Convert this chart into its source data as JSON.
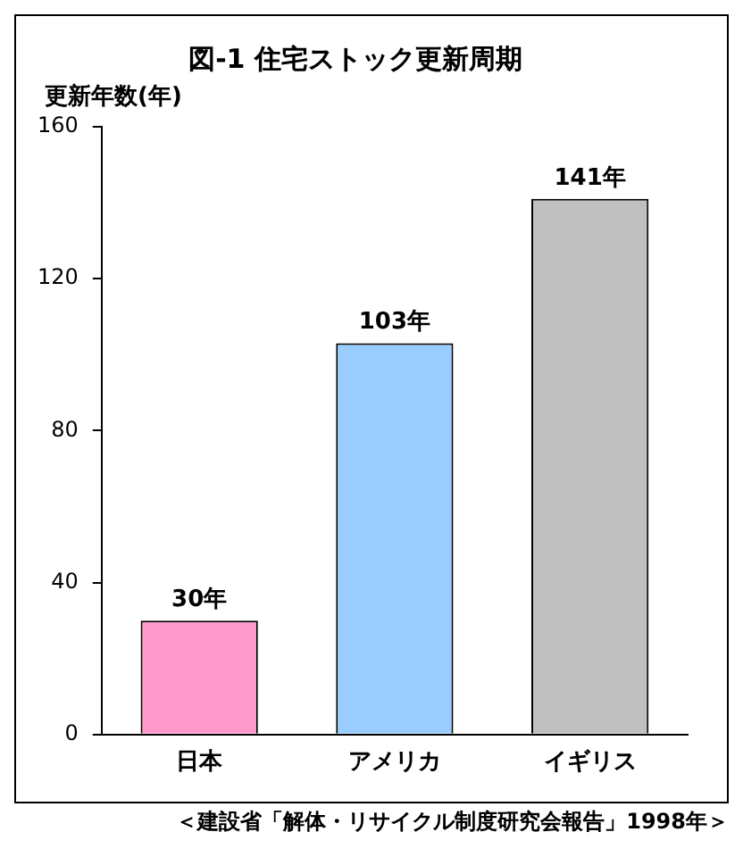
{
  "chart_data": {
    "type": "bar",
    "title": "図-1 住宅ストック更新周期",
    "ylabel": "更新年数(年)",
    "categories": [
      "日本",
      "アメリカ",
      "イギリス"
    ],
    "values": [
      30,
      103,
      141
    ],
    "colors": [
      "#ff99cc",
      "#99ccff",
      "#c0c0c0"
    ],
    "value_labels": [
      "30年",
      "103年",
      "141年"
    ],
    "ylim": [
      0,
      160
    ],
    "yticks": [
      0,
      40,
      80,
      120,
      160
    ],
    "grid": false,
    "legend": false,
    "annotations": [
      "＜建設省「解体・リサイクル制度研究会報告」1998年＞"
    ]
  }
}
